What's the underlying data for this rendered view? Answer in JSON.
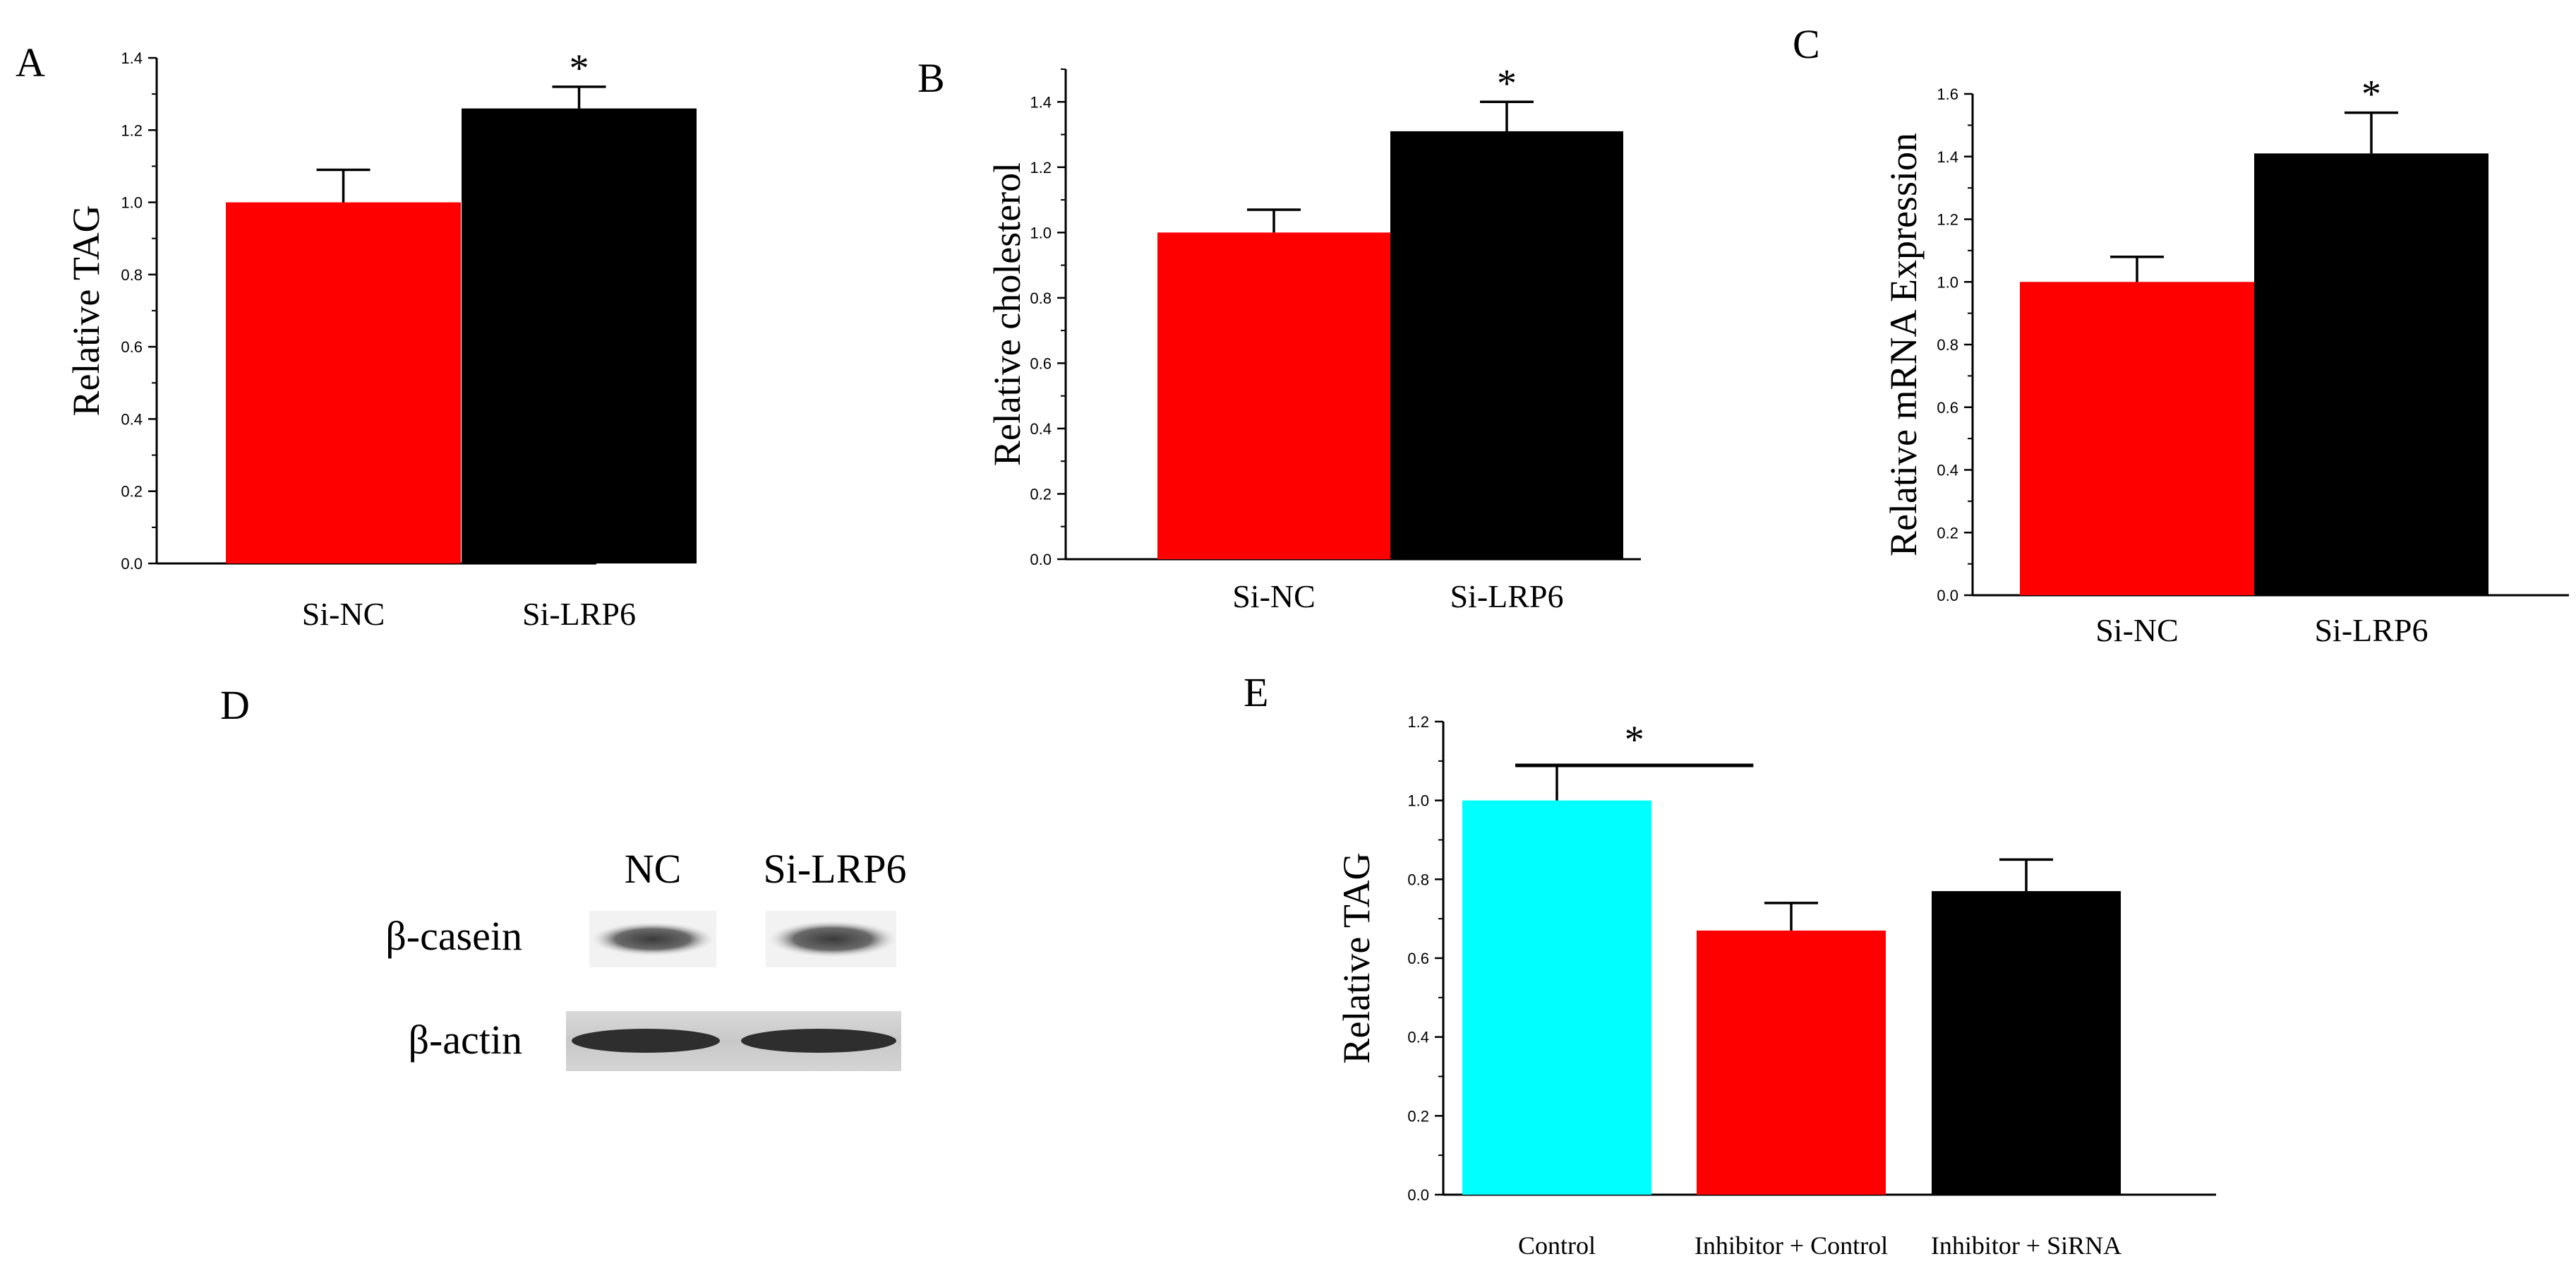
{
  "chart_data": [
    {
      "type": "bar",
      "panel": "A",
      "title": "",
      "xlabel": "",
      "ylabel": "Relative TAG",
      "ylim": [
        0,
        1.4
      ],
      "yticks": [
        "0.0",
        "0.2",
        "0.4",
        "0.6",
        "0.8",
        "1.0",
        "1.2",
        "1.4"
      ],
      "categories": [
        "Si-NC",
        "Si-LRP6"
      ],
      "values": [
        1.0,
        1.26
      ],
      "errors": [
        0.09,
        0.06
      ],
      "colors": [
        "#ff0000",
        "#000000"
      ],
      "significance": [
        "",
        "*"
      ]
    },
    {
      "type": "bar",
      "panel": "B",
      "title": "",
      "xlabel": "",
      "ylabel": "Relative cholesterol",
      "ylim": [
        0,
        1.5
      ],
      "yticks": [
        "0.0",
        "0.2",
        "0.4",
        "0.6",
        "0.8",
        "1.0",
        "1.2",
        "1.4"
      ],
      "categories": [
        "Si-NC",
        "Si-LRP6"
      ],
      "values": [
        1.0,
        1.31
      ],
      "errors": [
        0.07,
        0.09
      ],
      "colors": [
        "#ff0000",
        "#000000"
      ],
      "significance": [
        "",
        "*"
      ]
    },
    {
      "type": "bar",
      "panel": "C",
      "title": "",
      "xlabel": "",
      "ylabel": "Relative mRNA Expression",
      "ylim": [
        0,
        1.6
      ],
      "yticks": [
        "0.0",
        "0.2",
        "0.4",
        "0.6",
        "0.8",
        "1.0",
        "1.2",
        "1.4",
        "1.6"
      ],
      "categories": [
        "Si-NC",
        "Si-LRP6"
      ],
      "values": [
        1.0,
        1.41
      ],
      "errors": [
        0.08,
        0.13
      ],
      "colors": [
        "#ff0000",
        "#000000"
      ],
      "significance": [
        "",
        "*"
      ]
    },
    {
      "type": "bar",
      "panel": "E",
      "title": "",
      "xlabel": "",
      "ylabel": "Relative TAG",
      "ylim": [
        0,
        1.2
      ],
      "yticks": [
        "0.0",
        "0.2",
        "0.4",
        "0.6",
        "0.8",
        "1.0",
        "1.2"
      ],
      "categories": [
        "Control",
        "Inhibitor + Control",
        "Inhibitor + SiRNA"
      ],
      "values": [
        1.0,
        0.67,
        0.77
      ],
      "errors": [
        0.09,
        0.07,
        0.08
      ],
      "colors": [
        "#00ffff",
        "#ff0000",
        "#000000"
      ],
      "significance_bracket": {
        "from": 0,
        "to": 1,
        "label": "*"
      }
    }
  ],
  "western_blot": {
    "panel": "D",
    "lanes": [
      "NC",
      "Si-LRP6"
    ],
    "rows": [
      "β-casein",
      "β-actin"
    ]
  }
}
